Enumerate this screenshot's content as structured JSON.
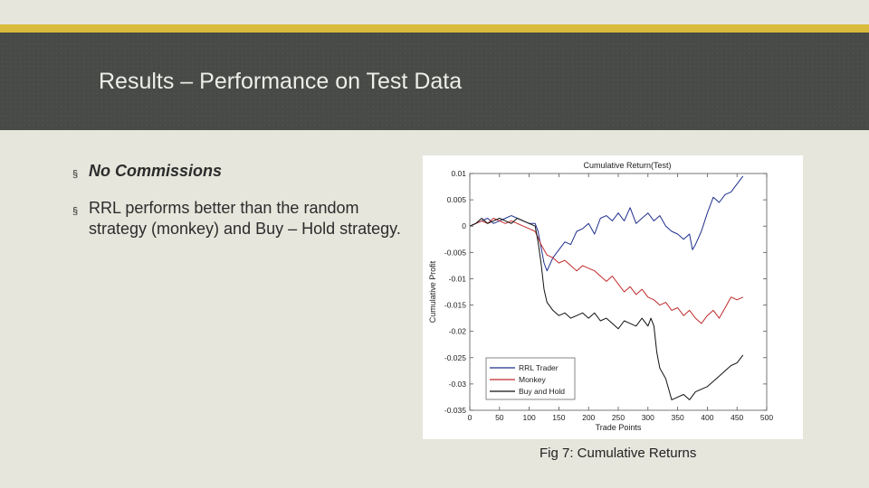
{
  "slide": {
    "title": "Results – Performance on Test Data",
    "bullets": [
      "No Commissions",
      "RRL performs better than the random strategy (monkey) and Buy – Hold strategy."
    ],
    "bullet_marker": "§",
    "caption": "Fig 7: Cumulative Returns"
  },
  "colors": {
    "gold": "#d9bb3b",
    "header": "#474a46",
    "background": "#e6e6dc",
    "rrl": "#1f2f8c",
    "monkey": "#c0292b",
    "buyhold": "#111111"
  },
  "chart_data": {
    "type": "line",
    "title": "Cumulative Return(Test)",
    "xlabel": "Trade Points",
    "ylabel": "Cumulative Profit",
    "xlim": [
      0,
      500
    ],
    "ylim": [
      -0.035,
      0.01
    ],
    "xticks": [
      0,
      50,
      100,
      150,
      200,
      250,
      300,
      350,
      400,
      450,
      500
    ],
    "yticks": [
      0.01,
      0.005,
      0,
      -0.005,
      -0.01,
      -0.015,
      -0.02,
      -0.025,
      -0.03,
      -0.035
    ],
    "ytick_labels": [
      "0.01",
      "0.005",
      "0",
      "-0.005",
      "-0.01",
      "-0.015",
      "-0.02",
      "-0.025",
      "-0.03",
      "-0.035"
    ],
    "legend_position": "bottom-left",
    "series": [
      {
        "name": "RRL Trader",
        "color": "#1f2f8c",
        "x": [
          0,
          10,
          20,
          30,
          40,
          50,
          60,
          70,
          80,
          90,
          100,
          110,
          115,
          120,
          125,
          130,
          140,
          150,
          160,
          170,
          180,
          190,
          200,
          210,
          220,
          230,
          240,
          250,
          260,
          270,
          280,
          290,
          300,
          310,
          320,
          330,
          340,
          350,
          360,
          370,
          375,
          380,
          390,
          400,
          410,
          420,
          430,
          440,
          450,
          460
        ],
        "values": [
          0,
          0.0005,
          0.001,
          0.0015,
          0.0005,
          0.001,
          0.0015,
          0.002,
          0.0015,
          0.001,
          0.0005,
          0.0005,
          -0.001,
          -0.004,
          -0.007,
          -0.0085,
          -0.006,
          -0.0045,
          -0.003,
          -0.0035,
          -0.001,
          -0.0005,
          0.0005,
          -0.0015,
          0.0015,
          0.002,
          0.001,
          0.0025,
          0.001,
          0.0035,
          0.0005,
          0.0015,
          0.0025,
          0.001,
          0.002,
          0.0,
          -0.001,
          -0.0015,
          -0.0025,
          -0.0015,
          -0.0045,
          -0.0035,
          -0.001,
          0.0025,
          0.0055,
          0.0045,
          0.006,
          0.0065,
          0.008,
          0.0095
        ]
      },
      {
        "name": "Monkey",
        "color": "#c0292b",
        "x": [
          0,
          10,
          20,
          30,
          40,
          50,
          60,
          70,
          80,
          90,
          100,
          110,
          120,
          130,
          140,
          150,
          160,
          170,
          180,
          190,
          200,
          210,
          220,
          230,
          240,
          250,
          260,
          270,
          280,
          290,
          300,
          310,
          320,
          330,
          340,
          350,
          360,
          370,
          380,
          390,
          400,
          410,
          420,
          430,
          440,
          450,
          460
        ],
        "values": [
          0,
          0.0005,
          0.001,
          0.0005,
          0.0015,
          0.001,
          0.0005,
          0.001,
          0.0005,
          0.0,
          -0.0005,
          -0.001,
          -0.0035,
          -0.0055,
          -0.006,
          -0.007,
          -0.0065,
          -0.0075,
          -0.0085,
          -0.0075,
          -0.008,
          -0.0085,
          -0.0095,
          -0.0105,
          -0.0095,
          -0.011,
          -0.0125,
          -0.0115,
          -0.013,
          -0.012,
          -0.0135,
          -0.014,
          -0.015,
          -0.0145,
          -0.016,
          -0.0155,
          -0.017,
          -0.016,
          -0.0175,
          -0.0185,
          -0.017,
          -0.016,
          -0.0175,
          -0.0155,
          -0.0135,
          -0.014,
          -0.0135
        ]
      },
      {
        "name": "Buy and Hold",
        "color": "#111111",
        "x": [
          0,
          10,
          20,
          30,
          40,
          50,
          60,
          70,
          80,
          90,
          100,
          110,
          115,
          120,
          125,
          130,
          140,
          150,
          160,
          170,
          180,
          190,
          200,
          210,
          220,
          230,
          240,
          250,
          260,
          270,
          280,
          290,
          300,
          305,
          310,
          315,
          320,
          330,
          340,
          350,
          360,
          370,
          380,
          390,
          400,
          410,
          420,
          430,
          440,
          450,
          460
        ],
        "values": [
          0,
          0.0005,
          0.0015,
          0.0005,
          0.001,
          0.0015,
          0.001,
          0.0005,
          0.0015,
          0.001,
          0.0005,
          0.0,
          -0.003,
          -0.007,
          -0.012,
          -0.0145,
          -0.016,
          -0.017,
          -0.0165,
          -0.0175,
          -0.017,
          -0.0165,
          -0.0175,
          -0.0165,
          -0.018,
          -0.0175,
          -0.0185,
          -0.0195,
          -0.018,
          -0.0185,
          -0.019,
          -0.0175,
          -0.019,
          -0.0175,
          -0.019,
          -0.024,
          -0.027,
          -0.029,
          -0.033,
          -0.0325,
          -0.032,
          -0.033,
          -0.0315,
          -0.031,
          -0.0305,
          -0.0295,
          -0.0285,
          -0.0275,
          -0.0265,
          -0.026,
          -0.0245
        ]
      }
    ]
  }
}
